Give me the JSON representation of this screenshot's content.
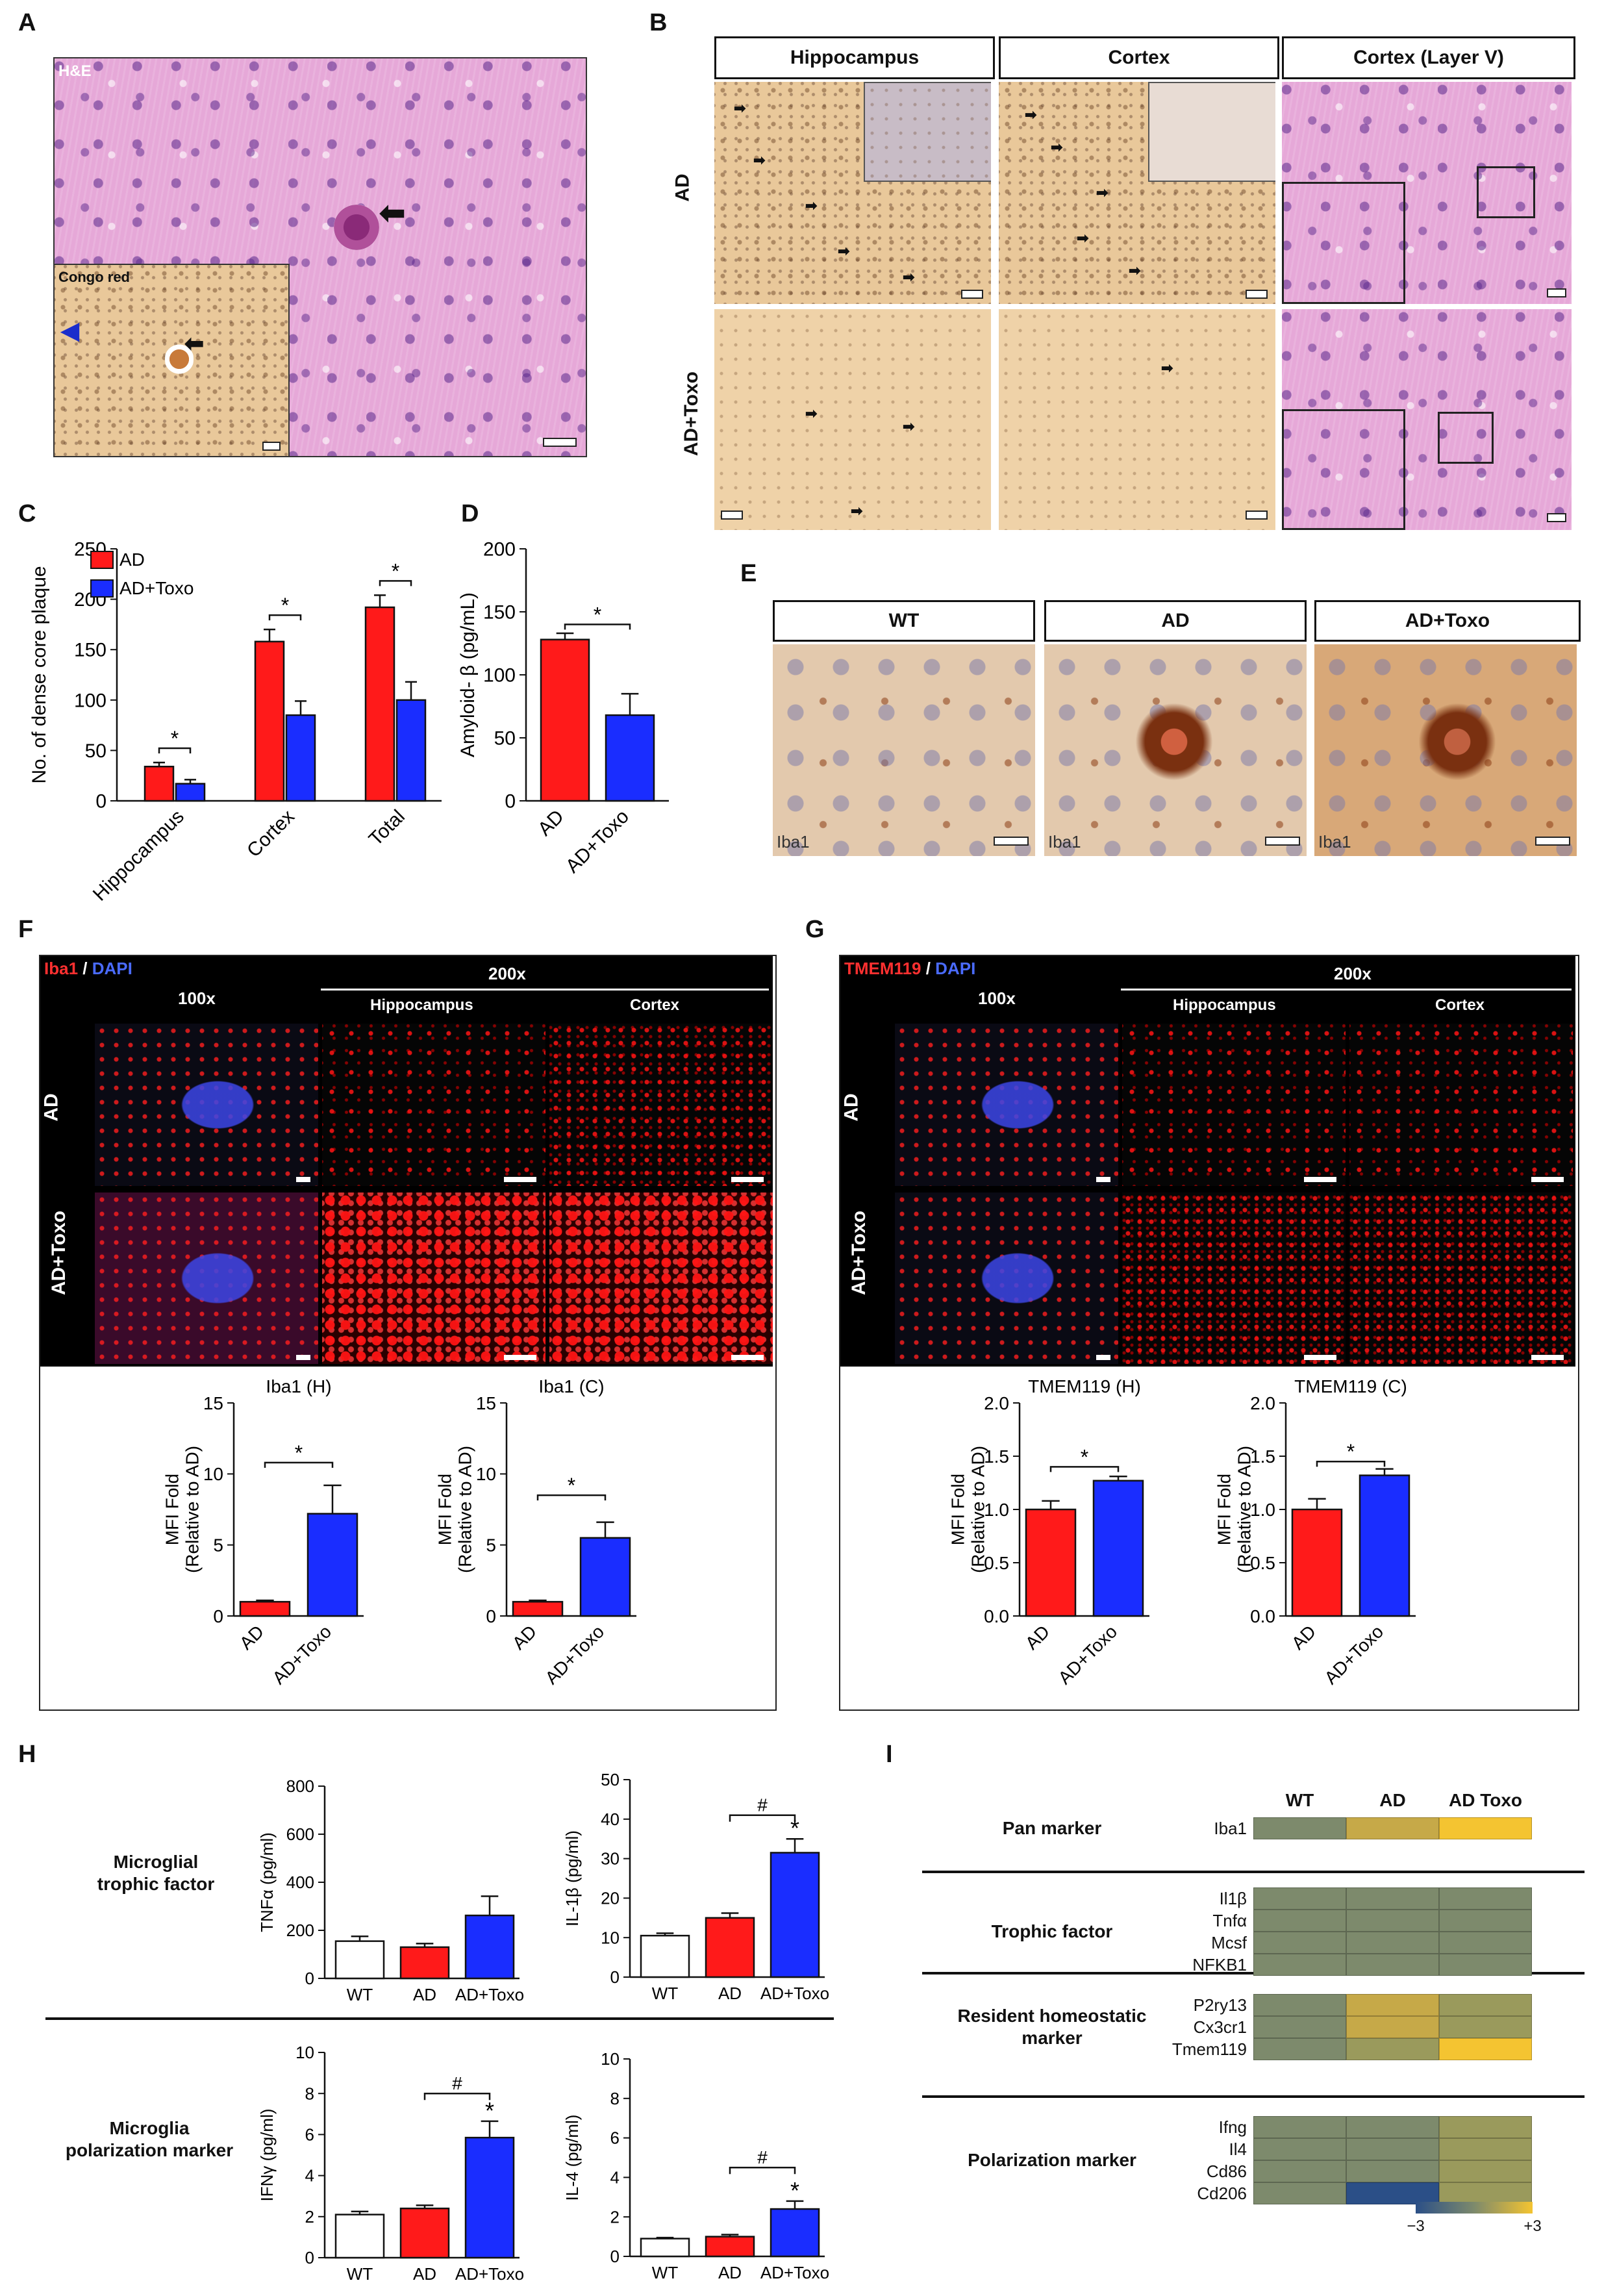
{
  "panels": {
    "a": {
      "label": "A",
      "he_label": "H&E",
      "inset_label": "Congo red"
    },
    "b": {
      "label": "B",
      "col_headers": [
        "Hippocampus",
        "Cortex",
        "Cortex (Layer V)"
      ],
      "row_labels": [
        "AD",
        "AD+Toxo"
      ]
    },
    "c": {
      "label": "C"
    },
    "d": {
      "label": "D"
    },
    "e": {
      "label": "E",
      "col_headers": [
        "WT",
        "AD",
        "AD+Toxo"
      ],
      "stain_label": "Iba1"
    },
    "f": {
      "label": "F",
      "stain": "Iba1",
      "sep": " / ",
      "dapi": "DAPI",
      "mag_100": "100x",
      "mag_200": "200x",
      "sub_h": "Hippocampus",
      "sub_c": "Cortex",
      "row_labels": [
        "AD",
        "AD+Toxo"
      ]
    },
    "g": {
      "label": "G",
      "stain": "TMEM119",
      "sep": " / ",
      "dapi": "DAPI",
      "mag_100": "100x",
      "mag_200": "200x",
      "sub_h": "Hippocampus",
      "sub_c": "Cortex",
      "row_labels": [
        "AD",
        "AD+Toxo"
      ]
    },
    "h": {
      "label": "H",
      "row1_label_a": "Microglial",
      "row1_label_b": "trophic factor",
      "row2_label_a": "Microglia",
      "row2_label_b": "polarization marker"
    },
    "i": {
      "label": "I",
      "cols": [
        "WT",
        "AD",
        "AD Toxo"
      ],
      "legend_min": "−3",
      "legend_max": "+3",
      "groups": [
        {
          "name_a": "Pan marker",
          "name_b": "",
          "genes": [
            "Iba1"
          ]
        },
        {
          "name_a": "Trophic factor",
          "name_b": "",
          "genes": [
            "Il1β",
            "Tnfα",
            "Mcsf",
            "NFKB1"
          ]
        },
        {
          "name_a": "Resident homeostatic",
          "name_b": "marker",
          "genes": [
            "P2ry13",
            "Cx3cr1",
            "Tmem119"
          ]
        },
        {
          "name_a": "Polarization marker",
          "name_b": "",
          "genes": [
            "Ifng",
            "Il4",
            "Cd86",
            "Cd206"
          ]
        }
      ]
    }
  },
  "heatmap_colors": {
    "neutral": "#7d8a6c",
    "mid": "#9a9a5c",
    "high": "#c6a948",
    "top": "#f4c431",
    "low": "#2b4f87"
  },
  "colors": {
    "wt": "#ffffff",
    "ad": "#ff1a1a",
    "toxo": "#1a2dff"
  },
  "chart_data": [
    {
      "id": "C",
      "type": "bar",
      "categories": [
        "Hippocampus",
        "Cortex",
        "Total"
      ],
      "series": [
        {
          "name": "AD",
          "values": [
            34,
            158,
            192
          ],
          "errors": [
            4,
            12,
            12
          ]
        },
        {
          "name": "AD+Toxo",
          "values": [
            17,
            85,
            100
          ],
          "errors": [
            4,
            14,
            18
          ]
        }
      ],
      "ylabel": "No. of dense core plaque",
      "ylim": [
        0,
        250
      ],
      "yticks": [
        0,
        50,
        100,
        150,
        200,
        250
      ],
      "sig": [
        "*",
        "*",
        "*"
      ],
      "legend": "top-left"
    },
    {
      "id": "D",
      "type": "bar",
      "categories": [
        "AD",
        "AD+Toxo"
      ],
      "values": [
        128,
        68
      ],
      "errors": [
        5,
        17
      ],
      "ylabel": "Amyloid- β (pg/mL)",
      "ylim": [
        0,
        200
      ],
      "yticks": [
        0,
        50,
        100,
        150,
        200
      ],
      "sig": "*"
    },
    {
      "id": "F1",
      "type": "bar",
      "title": "Iba1 (H)",
      "categories": [
        "AD",
        "AD+Toxo"
      ],
      "values": [
        1,
        7.2
      ],
      "errors": [
        0.1,
        2.0
      ],
      "ylabel": "MFI Fold (Relative to AD)",
      "ylim": [
        0,
        15
      ],
      "yticks": [
        0,
        5,
        10,
        15
      ],
      "sig": "*"
    },
    {
      "id": "F2",
      "type": "bar",
      "title": "Iba1 (C)",
      "categories": [
        "AD",
        "AD+Toxo"
      ],
      "values": [
        1,
        5.5
      ],
      "errors": [
        0.1,
        1.1
      ],
      "ylabel": "MFI Fold (Relative to AD)",
      "ylim": [
        0,
        15
      ],
      "yticks": [
        0,
        5,
        10,
        15
      ],
      "sig": "*"
    },
    {
      "id": "G1",
      "type": "bar",
      "title": "TMEM119 (H)",
      "categories": [
        "AD",
        "AD+Toxo"
      ],
      "values": [
        1.0,
        1.27
      ],
      "errors": [
        0.08,
        0.04
      ],
      "ylabel": "MFI Fold (Relative to AD)",
      "ylim": [
        0,
        2.0
      ],
      "yticks": [
        "0.0",
        "0.5",
        "1.0",
        "1.5",
        "2.0"
      ],
      "sig": "*"
    },
    {
      "id": "G2",
      "type": "bar",
      "title": "TMEM119  (C)",
      "categories": [
        "AD",
        "AD+Toxo"
      ],
      "values": [
        1.0,
        1.32
      ],
      "errors": [
        0.1,
        0.06
      ],
      "ylabel": "MFI Fold (Relative to AD)",
      "ylim": [
        0,
        2.0
      ],
      "yticks": [
        "0.0",
        "0.5",
        "1.0",
        "1.5",
        "2.0"
      ],
      "sig": "*"
    },
    {
      "id": "H1",
      "type": "bar",
      "categories": [
        "WT",
        "AD",
        "AD+Toxo"
      ],
      "values": [
        155,
        130,
        262
      ],
      "errors": [
        20,
        15,
        80
      ],
      "ylabel": "TNFα  (pg/ml)",
      "ylim": [
        0,
        800
      ],
      "yticks": [
        0,
        200,
        400,
        600,
        800
      ]
    },
    {
      "id": "H2",
      "type": "bar",
      "categories": [
        "WT",
        "AD",
        "AD+Toxo"
      ],
      "values": [
        10.5,
        15,
        31.5
      ],
      "errors": [
        0.6,
        1.2,
        3.5
      ],
      "ylabel": "IL-1β  (pg/ml)",
      "ylim": [
        0,
        50
      ],
      "yticks": [
        0,
        10,
        20,
        30,
        40,
        50
      ],
      "sig": "*",
      "hash": "#"
    },
    {
      "id": "H3",
      "type": "bar",
      "categories": [
        "WT",
        "AD",
        "AD+Toxo"
      ],
      "values": [
        2.1,
        2.4,
        5.85
      ],
      "errors": [
        0.15,
        0.15,
        0.8
      ],
      "ylabel": "IFNγ  (pg/ml)",
      "ylim": [
        0,
        10
      ],
      "yticks": [
        0,
        2,
        4,
        6,
        8,
        10
      ],
      "sig": "*",
      "hash": "#"
    },
    {
      "id": "H4",
      "type": "bar",
      "categories": [
        "WT",
        "AD",
        "AD+Toxo"
      ],
      "values": [
        0.9,
        1.0,
        2.4
      ],
      "errors": [
        0.05,
        0.1,
        0.4
      ],
      "ylabel": "IL-4  (pg/ml)",
      "ylim": [
        0,
        10
      ],
      "yticks": [
        0,
        2,
        4,
        6,
        8,
        10
      ],
      "sig": "*",
      "hash": "#"
    }
  ]
}
